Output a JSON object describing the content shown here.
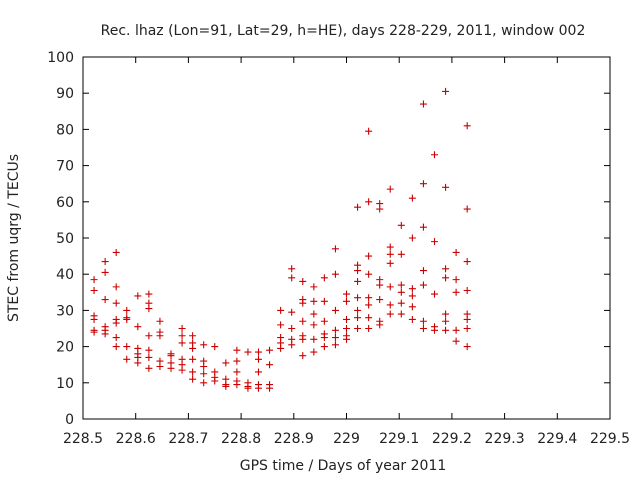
{
  "chart_data": {
    "type": "scatter",
    "title": "Rec. lhaz (Lon=91, Lat=29, h=HE), days 228-229, 2011, window 002",
    "xlabel": "GPS time / Days of year 2011",
    "ylabel": "STEC from uqrg / TECUs",
    "xlim": [
      228.5,
      229.5
    ],
    "ylim": [
      0,
      100
    ],
    "xticks": [
      228.5,
      228.6,
      228.7,
      228.8,
      228.9,
      229,
      229.1,
      229.2,
      229.3,
      229.4,
      229.5
    ],
    "xtick_labels": [
      "228.5",
      "228.6",
      "228.7",
      "228.8",
      "228.9",
      "229",
      "229.1",
      "229.2",
      "229.3",
      "229.4",
      "229.5"
    ],
    "yticks": [
      0,
      10,
      20,
      30,
      40,
      50,
      60,
      70,
      80,
      90,
      100
    ],
    "ytick_labels": [
      "0",
      "10",
      "20",
      "30",
      "40",
      "50",
      "60",
      "70",
      "80",
      "90",
      "100"
    ],
    "grid": false,
    "marker": "plus",
    "marker_color": "#cc0000",
    "series": [
      {
        "points": [
          [
            228.521,
            38.5
          ],
          [
            228.521,
            35.5
          ],
          [
            228.521,
            28.5
          ],
          [
            228.521,
            27.5
          ],
          [
            228.521,
            24.5
          ],
          [
            228.521,
            24.0
          ],
          [
            228.542,
            43.5
          ],
          [
            228.542,
            40.5
          ],
          [
            228.542,
            33.0
          ],
          [
            228.542,
            25.5
          ],
          [
            228.542,
            24.5
          ],
          [
            228.542,
            23.5
          ],
          [
            228.563,
            46.0
          ],
          [
            228.563,
            36.5
          ],
          [
            228.563,
            32.0
          ],
          [
            228.563,
            27.5
          ],
          [
            228.563,
            26.5
          ],
          [
            228.563,
            22.5
          ],
          [
            228.563,
            20.0
          ],
          [
            228.583,
            30.0
          ],
          [
            228.583,
            28.0
          ],
          [
            228.583,
            27.5
          ],
          [
            228.583,
            20.0
          ],
          [
            228.583,
            16.5
          ],
          [
            228.604,
            34.0
          ],
          [
            228.604,
            25.5
          ],
          [
            228.604,
            19.5
          ],
          [
            228.604,
            18.0
          ],
          [
            228.604,
            17.0
          ],
          [
            228.604,
            15.5
          ],
          [
            228.625,
            34.5
          ],
          [
            228.625,
            32.0
          ],
          [
            228.625,
            30.5
          ],
          [
            228.625,
            23.0
          ],
          [
            228.625,
            19.0
          ],
          [
            228.625,
            17.0
          ],
          [
            228.625,
            14.0
          ],
          [
            228.646,
            27.0
          ],
          [
            228.646,
            24.0
          ],
          [
            228.646,
            23.0
          ],
          [
            228.646,
            16.0
          ],
          [
            228.646,
            14.5
          ],
          [
            228.667,
            18.0
          ],
          [
            228.667,
            17.5
          ],
          [
            228.667,
            15.5
          ],
          [
            228.667,
            14.0
          ],
          [
            228.688,
            25.0
          ],
          [
            228.688,
            23.0
          ],
          [
            228.688,
            21.0
          ],
          [
            228.688,
            16.5
          ],
          [
            228.688,
            15.0
          ],
          [
            228.688,
            13.5
          ],
          [
            228.708,
            23.0
          ],
          [
            228.708,
            21.0
          ],
          [
            228.708,
            19.5
          ],
          [
            228.708,
            16.5
          ],
          [
            228.708,
            13.0
          ],
          [
            228.708,
            11.0
          ],
          [
            228.729,
            20.5
          ],
          [
            228.729,
            16.0
          ],
          [
            228.729,
            14.5
          ],
          [
            228.729,
            12.5
          ],
          [
            228.729,
            10.0
          ],
          [
            228.75,
            20.0
          ],
          [
            228.75,
            13.0
          ],
          [
            228.75,
            11.5
          ],
          [
            228.75,
            10.5
          ],
          [
            228.771,
            15.5
          ],
          [
            228.771,
            11.0
          ],
          [
            228.771,
            9.5
          ],
          [
            228.771,
            9.0
          ],
          [
            228.792,
            19.0
          ],
          [
            228.792,
            16.0
          ],
          [
            228.792,
            13.0
          ],
          [
            228.792,
            10.5
          ],
          [
            228.792,
            9.5
          ],
          [
            228.813,
            18.5
          ],
          [
            228.813,
            10.0
          ],
          [
            228.813,
            9.0
          ],
          [
            228.813,
            8.5
          ],
          [
            228.833,
            18.5
          ],
          [
            228.833,
            16.5
          ],
          [
            228.833,
            13.0
          ],
          [
            228.833,
            9.5
          ],
          [
            228.833,
            8.5
          ],
          [
            228.854,
            19.0
          ],
          [
            228.854,
            15.0
          ],
          [
            228.854,
            9.5
          ],
          [
            228.854,
            8.5
          ],
          [
            228.875,
            30.0
          ],
          [
            228.875,
            26.0
          ],
          [
            228.875,
            22.5
          ],
          [
            228.875,
            21.0
          ],
          [
            228.875,
            19.5
          ],
          [
            228.896,
            41.5
          ],
          [
            228.896,
            39.0
          ],
          [
            228.896,
            29.5
          ],
          [
            228.896,
            25.0
          ],
          [
            228.896,
            22.0
          ],
          [
            228.896,
            20.5
          ],
          [
            228.917,
            38.0
          ],
          [
            228.917,
            33.0
          ],
          [
            228.917,
            32.0
          ],
          [
            228.917,
            27.0
          ],
          [
            228.917,
            23.0
          ],
          [
            228.917,
            22.0
          ],
          [
            228.917,
            17.5
          ],
          [
            228.938,
            36.5
          ],
          [
            228.938,
            32.5
          ],
          [
            228.938,
            29.0
          ],
          [
            228.938,
            26.0
          ],
          [
            228.938,
            22.0
          ],
          [
            228.938,
            18.5
          ],
          [
            228.958,
            39.0
          ],
          [
            228.958,
            32.5
          ],
          [
            228.958,
            27.0
          ],
          [
            228.958,
            23.5
          ],
          [
            228.958,
            22.5
          ],
          [
            228.958,
            20.0
          ],
          [
            228.979,
            47.0
          ],
          [
            228.979,
            40.0
          ],
          [
            228.979,
            30.0
          ],
          [
            228.979,
            24.5
          ],
          [
            228.979,
            22.5
          ],
          [
            228.979,
            20.5
          ],
          [
            229.0,
            34.5
          ],
          [
            229.0,
            32.5
          ],
          [
            229.0,
            27.5
          ],
          [
            229.0,
            25.0
          ],
          [
            229.0,
            23.0
          ],
          [
            229.0,
            22.0
          ],
          [
            229.021,
            58.5
          ],
          [
            229.021,
            42.5
          ],
          [
            229.021,
            41.0
          ],
          [
            229.021,
            38.0
          ],
          [
            229.021,
            33.5
          ],
          [
            229.021,
            30.0
          ],
          [
            229.021,
            28.0
          ],
          [
            229.021,
            25.0
          ],
          [
            229.042,
            79.5
          ],
          [
            229.042,
            60.0
          ],
          [
            229.042,
            45.0
          ],
          [
            229.042,
            40.0
          ],
          [
            229.042,
            33.5
          ],
          [
            229.042,
            31.5
          ],
          [
            229.042,
            28.0
          ],
          [
            229.042,
            25.0
          ],
          [
            229.063,
            59.5
          ],
          [
            229.063,
            58.0
          ],
          [
            229.063,
            38.5
          ],
          [
            229.063,
            37.0
          ],
          [
            229.063,
            33.0
          ],
          [
            229.063,
            27.0
          ],
          [
            229.063,
            26.0
          ],
          [
            229.083,
            63.5
          ],
          [
            229.083,
            47.5
          ],
          [
            229.083,
            45.5
          ],
          [
            229.083,
            43.0
          ],
          [
            229.083,
            36.5
          ],
          [
            229.083,
            31.5
          ],
          [
            229.083,
            29.0
          ],
          [
            229.104,
            53.5
          ],
          [
            229.104,
            45.5
          ],
          [
            229.104,
            37.0
          ],
          [
            229.104,
            35.0
          ],
          [
            229.104,
            32.0
          ],
          [
            229.104,
            29.0
          ],
          [
            229.125,
            61.0
          ],
          [
            229.125,
            50.0
          ],
          [
            229.125,
            36.0
          ],
          [
            229.125,
            34.0
          ],
          [
            229.125,
            31.0
          ],
          [
            229.125,
            27.5
          ],
          [
            229.146,
            87.0
          ],
          [
            229.146,
            65.0
          ],
          [
            229.146,
            53.0
          ],
          [
            229.146,
            41.0
          ],
          [
            229.146,
            37.0
          ],
          [
            229.146,
            27.0
          ],
          [
            229.146,
            25.0
          ],
          [
            229.167,
            73.0
          ],
          [
            229.167,
            49.0
          ],
          [
            229.167,
            34.5
          ],
          [
            229.167,
            25.5
          ],
          [
            229.167,
            24.5
          ],
          [
            229.188,
            90.5
          ],
          [
            229.188,
            64.0
          ],
          [
            229.188,
            41.5
          ],
          [
            229.188,
            39.0
          ],
          [
            229.188,
            29.0
          ],
          [
            229.188,
            27.0
          ],
          [
            229.188,
            24.5
          ],
          [
            229.208,
            46.0
          ],
          [
            229.208,
            38.5
          ],
          [
            229.208,
            35.0
          ],
          [
            229.208,
            24.5
          ],
          [
            229.208,
            21.5
          ],
          [
            229.229,
            81.0
          ],
          [
            229.229,
            58.0
          ],
          [
            229.229,
            43.5
          ],
          [
            229.229,
            35.5
          ],
          [
            229.229,
            29.0
          ],
          [
            229.229,
            27.5
          ],
          [
            229.229,
            25.0
          ],
          [
            229.229,
            20.0
          ]
        ]
      }
    ]
  }
}
